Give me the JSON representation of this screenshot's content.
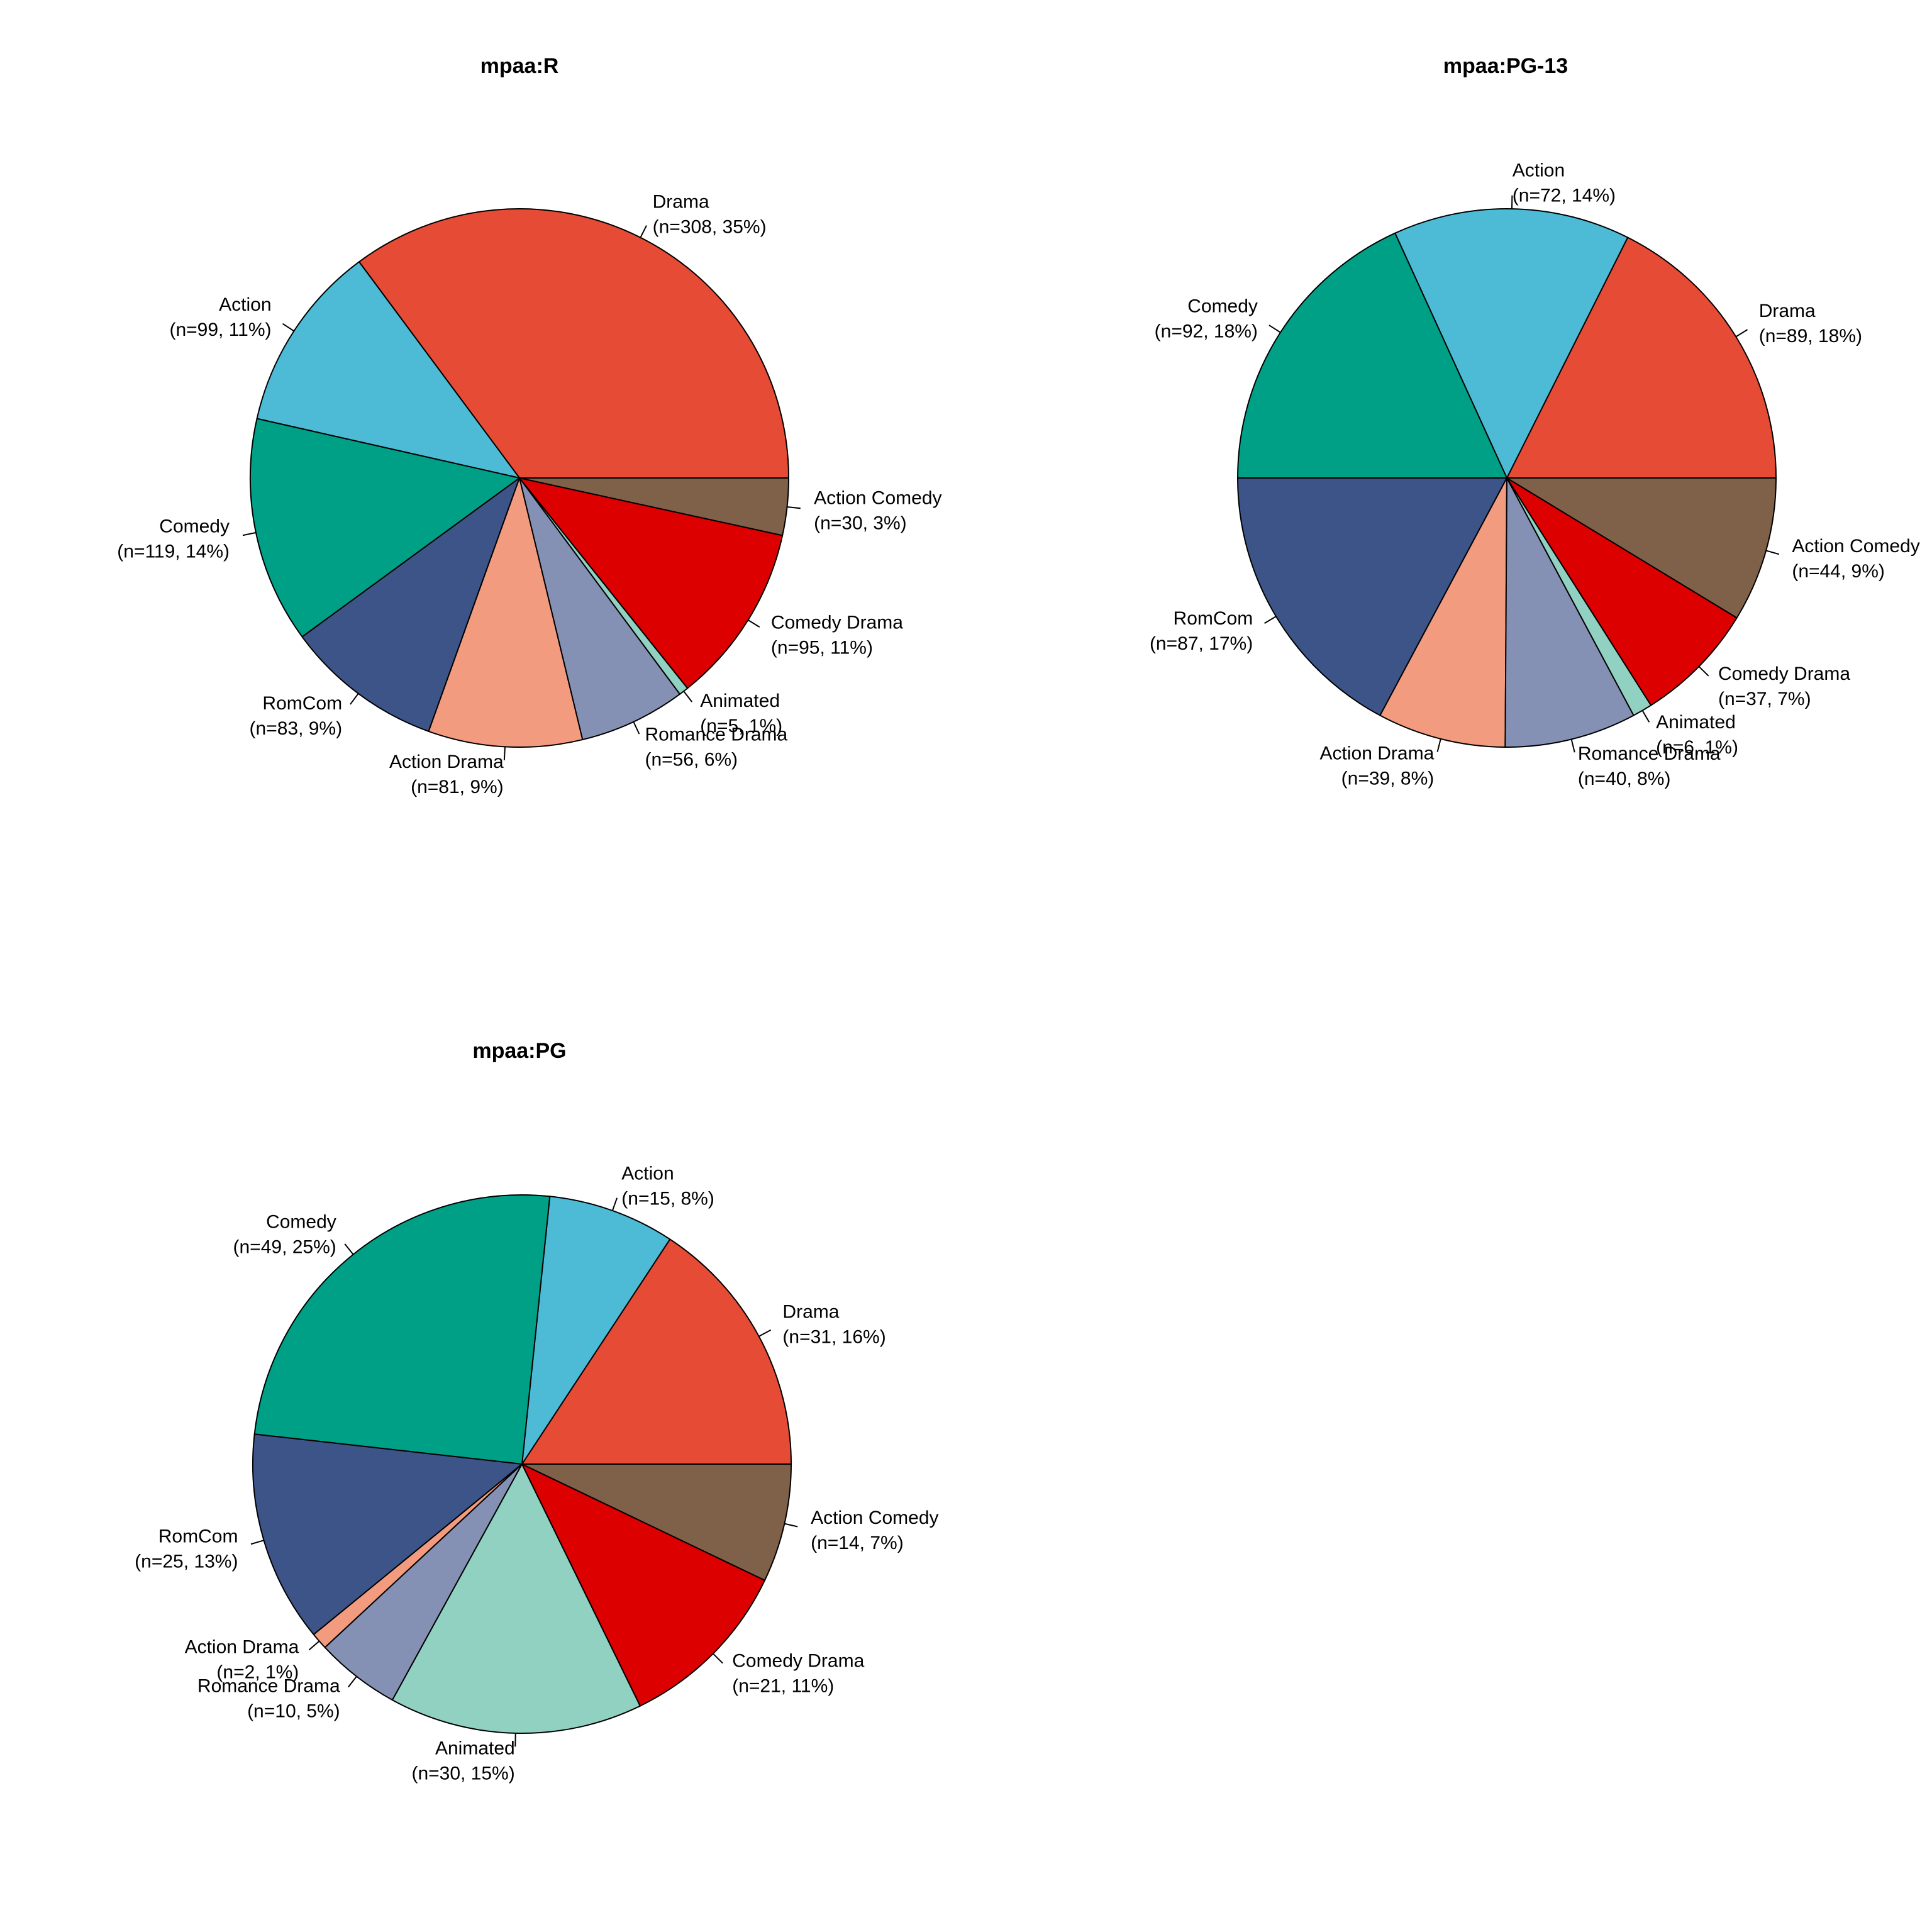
{
  "chart_data": [
    {
      "type": "pie",
      "title": "mpaa:R",
      "slices": [
        {
          "category": "Drama",
          "value": 308,
          "percent": 35,
          "label_line1": "Drama",
          "label_line2": "(n=308, 35%)",
          "color": "#E64B35"
        },
        {
          "category": "Action",
          "value": 99,
          "percent": 11,
          "label_line1": "Action",
          "label_line2": "(n=99, 11%)",
          "color": "#4DBBD5"
        },
        {
          "category": "Comedy",
          "value": 119,
          "percent": 14,
          "label_line1": "Comedy",
          "label_line2": "(n=119, 14%)",
          "color": "#00A087"
        },
        {
          "category": "RomCom",
          "value": 83,
          "percent": 9,
          "label_line1": "RomCom",
          "label_line2": "(n=83, 9%)",
          "color": "#3C5488"
        },
        {
          "category": "Action Drama",
          "value": 81,
          "percent": 9,
          "label_line1": "Action Drama",
          "label_line2": "(n=81, 9%)",
          "color": "#F39B7F"
        },
        {
          "category": "Romance Drama",
          "value": 56,
          "percent": 6,
          "label_line1": "Romance Drama",
          "label_line2": "(n=56, 6%)",
          "color": "#8491B4"
        },
        {
          "category": "Animated",
          "value": 5,
          "percent": 1,
          "label_line1": "Animated",
          "label_line2": "(n=5, 1%)",
          "color": "#91D1C2"
        },
        {
          "category": "Comedy Drama",
          "value": 95,
          "percent": 11,
          "label_line1": "Comedy Drama",
          "label_line2": "(n=95, 11%)",
          "color": "#DC0000"
        },
        {
          "category": "Action Comedy",
          "value": 30,
          "percent": 3,
          "label_line1": "Action Comedy",
          "label_line2": "(n=30, 3%)",
          "color": "#7E6148"
        }
      ]
    },
    {
      "type": "pie",
      "title": "mpaa:PG-13",
      "slices": [
        {
          "category": "Drama",
          "value": 89,
          "percent": 18,
          "label_line1": "Drama",
          "label_line2": "(n=89, 18%)",
          "color": "#E64B35"
        },
        {
          "category": "Action",
          "value": 72,
          "percent": 14,
          "label_line1": "Action",
          "label_line2": "(n=72, 14%)",
          "color": "#4DBBD5"
        },
        {
          "category": "Comedy",
          "value": 92,
          "percent": 18,
          "label_line1": "Comedy",
          "label_line2": "(n=92, 18%)",
          "color": "#00A087"
        },
        {
          "category": "RomCom",
          "value": 87,
          "percent": 17,
          "label_line1": "RomCom",
          "label_line2": "(n=87, 17%)",
          "color": "#3C5488"
        },
        {
          "category": "Action Drama",
          "value": 39,
          "percent": 8,
          "label_line1": "Action Drama",
          "label_line2": "(n=39, 8%)",
          "color": "#F39B7F"
        },
        {
          "category": "Romance Drama",
          "value": 40,
          "percent": 8,
          "label_line1": "Romance Drama",
          "label_line2": "(n=40, 8%)",
          "color": "#8491B4"
        },
        {
          "category": "Animated",
          "value": 6,
          "percent": 1,
          "label_line1": "Animated",
          "label_line2": "(n=6, 1%)",
          "color": "#91D1C2"
        },
        {
          "category": "Comedy Drama",
          "value": 37,
          "percent": 7,
          "label_line1": "Comedy Drama",
          "label_line2": "(n=37, 7%)",
          "color": "#DC0000"
        },
        {
          "category": "Action Comedy",
          "value": 44,
          "percent": 9,
          "label_line1": "Action Comedy",
          "label_line2": "(n=44, 9%)",
          "color": "#7E6148"
        }
      ]
    },
    {
      "type": "pie",
      "title": "mpaa:PG",
      "slices": [
        {
          "category": "Drama",
          "value": 31,
          "percent": 16,
          "label_line1": "Drama",
          "label_line2": "(n=31, 16%)",
          "color": "#E64B35"
        },
        {
          "category": "Action",
          "value": 15,
          "percent": 8,
          "label_line1": "Action",
          "label_line2": "(n=15, 8%)",
          "color": "#4DBBD5"
        },
        {
          "category": "Comedy",
          "value": 49,
          "percent": 25,
          "label_line1": "Comedy",
          "label_line2": "(n=49, 25%)",
          "color": "#00A087"
        },
        {
          "category": "RomCom",
          "value": 25,
          "percent": 13,
          "label_line1": "RomCom",
          "label_line2": "(n=25, 13%)",
          "color": "#3C5488"
        },
        {
          "category": "Action Drama",
          "value": 2,
          "percent": 1,
          "label_line1": "Action Drama",
          "label_line2": "(n=2, 1%)",
          "color": "#F39B7F"
        },
        {
          "category": "Romance Drama",
          "value": 10,
          "percent": 5,
          "label_line1": "Romance Drama",
          "label_line2": "(n=10, 5%)",
          "color": "#8491B4"
        },
        {
          "category": "Animated",
          "value": 30,
          "percent": 15,
          "label_line1": "Animated",
          "label_line2": "(n=30, 15%)",
          "color": "#91D1C2"
        },
        {
          "category": "Comedy Drama",
          "value": 21,
          "percent": 11,
          "label_line1": "Comedy Drama",
          "label_line2": "(n=21, 11%)",
          "color": "#DC0000"
        },
        {
          "category": "Action Comedy",
          "value": 14,
          "percent": 7,
          "label_line1": "Action Comedy",
          "label_line2": "(n=14, 7%)",
          "color": "#7E6148"
        }
      ]
    }
  ]
}
